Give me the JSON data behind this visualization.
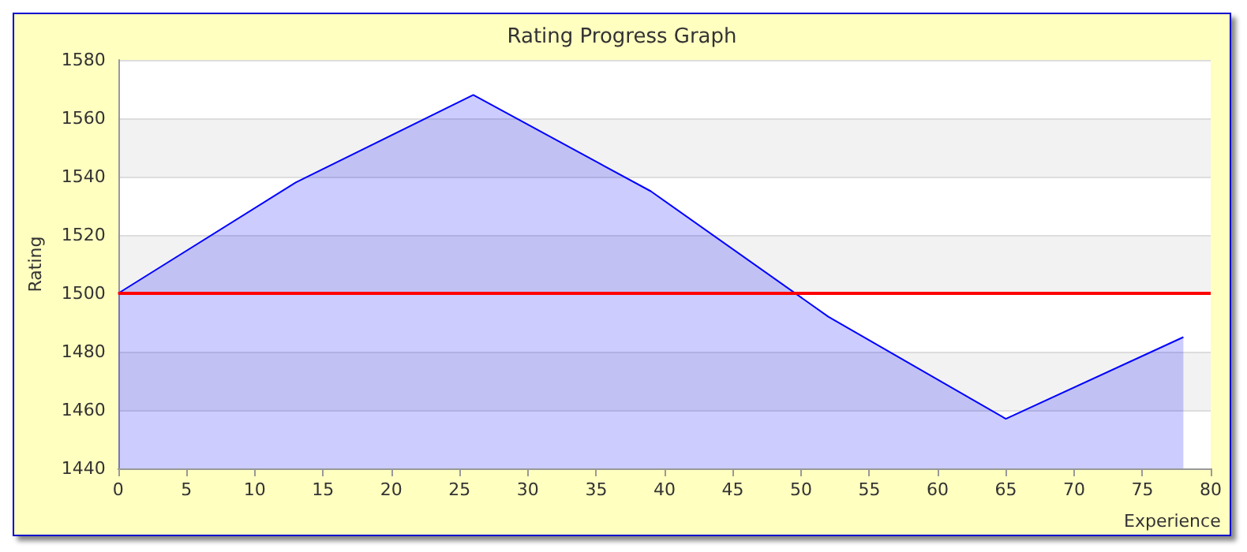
{
  "chart_data": {
    "type": "area",
    "title": "Rating Progress Graph",
    "xlabel": "Experience",
    "ylabel": "Rating",
    "x": [
      0,
      13,
      26,
      39,
      52,
      65,
      78
    ],
    "series": [
      {
        "color": "#0000ff",
        "values": [
          1500,
          1538,
          1568,
          1535,
          1492,
          1457,
          1485
        ]
      }
    ],
    "xlim": [
      0,
      80
    ],
    "xticks": [
      0,
      5,
      10,
      15,
      20,
      25,
      30,
      35,
      40,
      45,
      50,
      55,
      60,
      65,
      70,
      75,
      80
    ],
    "ylim": [
      1440,
      1580
    ],
    "yticks": [
      1440,
      1460,
      1480,
      1500,
      1520,
      1540,
      1560,
      1580
    ],
    "ref_lines": [
      {
        "axis": "y",
        "value": 1500,
        "color": "#ff0000"
      }
    ],
    "grid": "y",
    "marker": "none"
  }
}
